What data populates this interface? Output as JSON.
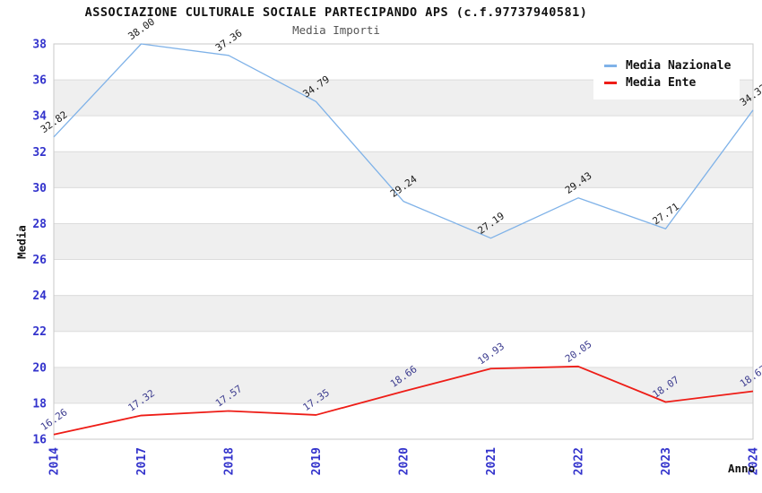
{
  "header": {
    "title": "ASSOCIAZIONE CULTURALE SOCIALE PARTECIPANDO APS (c.f.97737940581)",
    "subtitle": "Media Importi"
  },
  "legend": {
    "items": [
      {
        "label": "Media Nazionale",
        "color": "#7fb2e8"
      },
      {
        "label": "Media Ente",
        "color": "#ee1d17"
      }
    ]
  },
  "chart_data": {
    "type": "line",
    "x": [
      "2014",
      "2017",
      "2018",
      "2019",
      "2020",
      "2021",
      "2022",
      "2023",
      "2024"
    ],
    "series": [
      {
        "name": "Media Nazionale",
        "color": "#7fb2e8",
        "label_color": "#1a1a1a",
        "line_width": 1.3,
        "values": [
          32.82,
          38.0,
          37.36,
          34.79,
          29.24,
          27.19,
          29.43,
          27.71,
          34.32
        ]
      },
      {
        "name": "Media Ente",
        "color": "#ee1d17",
        "label_color": "#3c3c8f",
        "line_width": 1.8,
        "values": [
          16.26,
          17.32,
          17.57,
          17.35,
          18.66,
          19.93,
          20.05,
          18.07,
          18.67
        ]
      }
    ],
    "title": "ASSOCIAZIONE CULTURALE SOCIALE PARTECIPANDO APS (c.f.97737940581)",
    "subtitle": "Media Importi",
    "xlabel": "Anno",
    "ylabel": "Media",
    "ylim": [
      16,
      38
    ],
    "ytick_step": 2,
    "grid": true,
    "legend_position": "top-right",
    "axis_tick_color": "#3333cc",
    "grid_color": "#dcdcdc",
    "band_color": "#efefef",
    "plot_border_color": "#c9c9c9",
    "point_label_rotation_deg": -35,
    "point_label_format_decimals": 2
  }
}
